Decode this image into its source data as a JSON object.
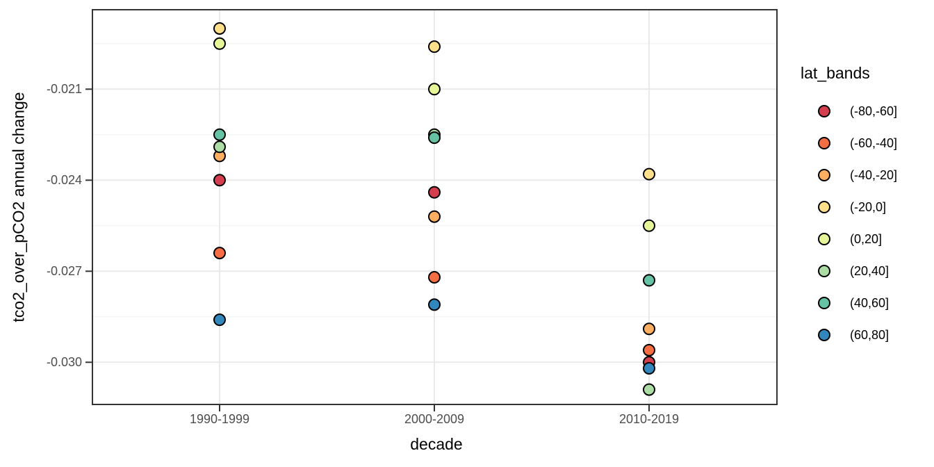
{
  "figure": {
    "background": "#ffffff",
    "panel_background": "#ffffff",
    "panel_border_color": "#333333",
    "grid_major_color": "#e9e9e9",
    "grid_minor_color": "#f4f4f4",
    "tick_mark_color": "#333333",
    "axis_text_color": "#4d4d4d",
    "point_outline_color": "#000000"
  },
  "chart_data": {
    "type": "scatter",
    "title": "",
    "xlabel": "decade",
    "ylabel": "tco2_over_pCO2 annual change",
    "categories": [
      "1990-1999",
      "2000-2009",
      "2010-2019"
    ],
    "y_axis": {
      "tick_labels": [
        "-0.021",
        "-0.024",
        "-0.027",
        "-0.030"
      ],
      "tick_values": [
        -0.021,
        -0.024,
        -0.027,
        -0.03
      ],
      "minor_tick_values": [
        -0.0195,
        -0.0225,
        -0.0255,
        -0.0285
      ],
      "ylim": [
        -0.0314,
        -0.0184
      ]
    },
    "grid": true,
    "legend": {
      "title": "lat_bands",
      "position": "right"
    },
    "series": [
      {
        "name": "(-80,-60]",
        "color": "#D53E4F",
        "values": [
          -0.024,
          -0.0244,
          -0.03
        ]
      },
      {
        "name": "(-60,-40]",
        "color": "#F46D43",
        "values": [
          -0.0264,
          -0.0272,
          -0.0296
        ]
      },
      {
        "name": "(-40,-20]",
        "color": "#FDAE61",
        "values": [
          -0.0232,
          -0.0252,
          -0.0289
        ]
      },
      {
        "name": "(-20,0]",
        "color": "#FEE08B",
        "values": [
          -0.019,
          -0.0196,
          -0.0238
        ]
      },
      {
        "name": "(0,20]",
        "color": "#E6F598",
        "values": [
          -0.0195,
          -0.021,
          -0.0255
        ]
      },
      {
        "name": "(20,40]",
        "color": "#ABDDA4",
        "values": [
          -0.0229,
          -0.0225,
          -0.0309
        ]
      },
      {
        "name": "(40,60]",
        "color": "#66C2A5",
        "values": [
          -0.0225,
          -0.0226,
          -0.0273
        ]
      },
      {
        "name": "(60,80]",
        "color": "#3288BD",
        "values": [
          -0.0286,
          -0.0281,
          -0.0302
        ]
      }
    ]
  }
}
